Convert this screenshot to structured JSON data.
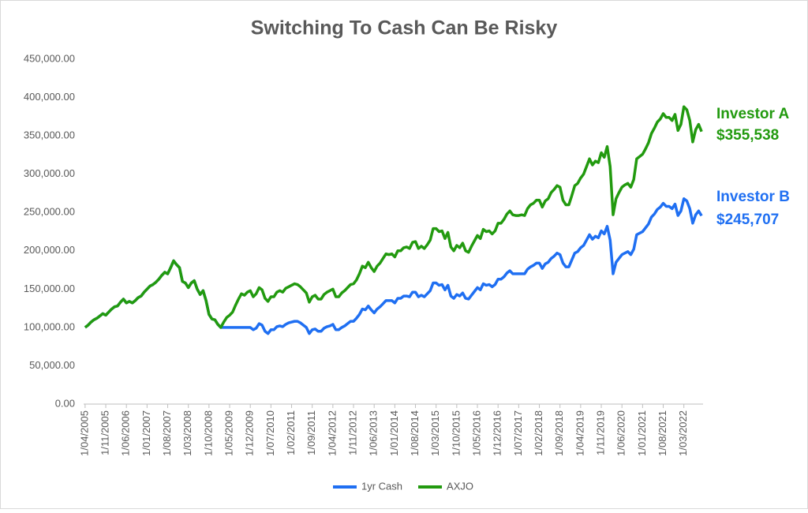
{
  "chart_data": {
    "type": "line",
    "title": "Switching To Cash Can Be Risky",
    "categories": [
      "1/04/2005",
      null,
      null,
      null,
      null,
      null,
      null,
      "1/11/2005",
      null,
      null,
      null,
      null,
      null,
      null,
      "1/06/2006",
      null,
      null,
      null,
      null,
      null,
      null,
      "1/01/2007",
      null,
      null,
      null,
      null,
      null,
      null,
      "1/08/2007",
      null,
      null,
      null,
      null,
      null,
      null,
      "1/03/2008",
      null,
      null,
      null,
      null,
      null,
      null,
      "1/10/2008",
      null,
      null,
      null,
      null,
      null,
      null,
      "1/05/2009",
      null,
      null,
      null,
      null,
      null,
      null,
      "1/12/2009",
      null,
      null,
      null,
      null,
      null,
      null,
      "1/07/2010",
      null,
      null,
      null,
      null,
      null,
      null,
      "1/02/2011",
      null,
      null,
      null,
      null,
      null,
      null,
      "1/09/2011",
      null,
      null,
      null,
      null,
      null,
      null,
      "1/04/2012",
      null,
      null,
      null,
      null,
      null,
      null,
      "1/11/2012",
      null,
      null,
      null,
      null,
      null,
      null,
      "1/06/2013",
      null,
      null,
      null,
      null,
      null,
      null,
      "1/01/2014",
      null,
      null,
      null,
      null,
      null,
      null,
      "1/08/2014",
      null,
      null,
      null,
      null,
      null,
      null,
      "1/03/2015",
      null,
      null,
      null,
      null,
      null,
      null,
      "1/10/2015",
      null,
      null,
      null,
      null,
      null,
      null,
      "1/05/2016",
      null,
      null,
      null,
      null,
      null,
      null,
      "1/12/2016",
      null,
      null,
      null,
      null,
      null,
      null,
      "1/07/2017",
      null,
      null,
      null,
      null,
      null,
      null,
      "1/02/2018",
      null,
      null,
      null,
      null,
      null,
      null,
      "1/09/2018",
      null,
      null,
      null,
      null,
      null,
      null,
      "1/04/2019",
      null,
      null,
      null,
      null,
      null,
      null,
      "1/11/2019",
      null,
      null,
      null,
      null,
      null,
      null,
      "1/06/2020",
      null,
      null,
      null,
      null,
      null,
      null,
      "1/01/2021",
      null,
      null,
      null,
      null,
      null,
      null,
      "1/08/2021",
      null,
      null,
      null,
      null,
      null,
      null,
      "1/03/2022",
      null,
      null,
      null,
      null,
      null,
      null
    ],
    "series": [
      {
        "name": "1yr Cash",
        "color": "#1f6ff2",
        "values": [
          100000,
          103000,
          107000,
          110000,
          112000,
          115000,
          118000,
          116000,
          120000,
          124000,
          127000,
          128000,
          133000,
          137000,
          132000,
          134000,
          132000,
          135000,
          139000,
          141000,
          146000,
          150000,
          154000,
          156000,
          159000,
          163000,
          168000,
          172000,
          170000,
          178000,
          187000,
          182000,
          178000,
          160000,
          158000,
          152000,
          158000,
          161000,
          150000,
          143000,
          148000,
          135000,
          117000,
          111000,
          110000,
          104000,
          100000,
          100000,
          100000,
          100000,
          100000,
          100000,
          100000,
          100000,
          100000,
          100000,
          100000,
          97000,
          99000,
          105000,
          103000,
          95000,
          92000,
          97000,
          97000,
          101000,
          102000,
          101000,
          104000,
          106000,
          107000,
          108000,
          108000,
          106000,
          103000,
          100000,
          92000,
          97000,
          98000,
          95000,
          95000,
          99000,
          101000,
          102000,
          104000,
          97000,
          97000,
          100000,
          102000,
          105000,
          108000,
          108000,
          112000,
          117000,
          124000,
          123000,
          128000,
          123000,
          119000,
          124000,
          127000,
          131000,
          135000,
          135000,
          135000,
          132000,
          138000,
          138000,
          141000,
          141000,
          140000,
          146000,
          146000,
          140000,
          142000,
          140000,
          144000,
          148000,
          158000,
          158000,
          155000,
          156000,
          149000,
          155000,
          141000,
          138000,
          143000,
          141000,
          145000,
          138000,
          137000,
          142000,
          147000,
          152000,
          149000,
          157000,
          155000,
          156000,
          153000,
          156000,
          163000,
          163000,
          166000,
          171000,
          174000,
          170000,
          170000,
          170000,
          170000,
          170000,
          176000,
          179000,
          181000,
          184000,
          184000,
          177000,
          183000,
          185000,
          190000,
          193000,
          197000,
          195000,
          184000,
          179000,
          179000,
          188000,
          197000,
          199000,
          204000,
          207000,
          214000,
          221000,
          215000,
          219000,
          217000,
          226000,
          222000,
          232000,
          214000,
          170000,
          185000,
          190000,
          195000,
          197000,
          199000,
          195000,
          202000,
          221000,
          223000,
          225000,
          230000,
          235000,
          244000,
          248000,
          254000,
          257000,
          262000,
          258000,
          258000,
          255000,
          261000,
          246000,
          252000,
          268000,
          265000,
          255000,
          236000,
          247000,
          252000,
          245707
        ]
      },
      {
        "name": "AXJO",
        "color": "#229a0f",
        "values": [
          100000,
          103000,
          107000,
          110000,
          112000,
          115000,
          118000,
          116000,
          120000,
          124000,
          127000,
          128000,
          133000,
          137000,
          132000,
          134000,
          132000,
          135000,
          139000,
          141000,
          146000,
          150000,
          154000,
          156000,
          159000,
          163000,
          168000,
          172000,
          170000,
          178000,
          187000,
          182000,
          178000,
          160000,
          158000,
          152000,
          158000,
          161000,
          150000,
          143000,
          148000,
          135000,
          117000,
          111000,
          110000,
          104000,
          100000,
          107000,
          113000,
          116000,
          120000,
          129000,
          137000,
          144000,
          142000,
          146000,
          148000,
          140000,
          144000,
          152000,
          149000,
          138000,
          134000,
          140000,
          140000,
          146000,
          148000,
          146000,
          151000,
          153000,
          155000,
          157000,
          156000,
          153000,
          149000,
          145000,
          133000,
          140000,
          142000,
          137000,
          137000,
          143000,
          146000,
          148000,
          150000,
          140000,
          140000,
          145000,
          148000,
          152000,
          156000,
          157000,
          162000,
          170000,
          180000,
          178000,
          185000,
          178000,
          173000,
          180000,
          184000,
          190000,
          196000,
          195000,
          196000,
          192000,
          200000,
          200000,
          204000,
          205000,
          203000,
          211000,
          212000,
          203000,
          206000,
          203000,
          208000,
          214000,
          229000,
          229000,
          225000,
          226000,
          216000,
          224000,
          205000,
          200000,
          207000,
          204000,
          210000,
          200000,
          198000,
          206000,
          213000,
          220000,
          216000,
          228000,
          225000,
          226000,
          222000,
          226000,
          236000,
          236000,
          241000,
          248000,
          252000,
          247000,
          246000,
          246000,
          247000,
          246000,
          255000,
          260000,
          262000,
          266000,
          266000,
          257000,
          265000,
          268000,
          276000,
          280000,
          285000,
          283000,
          266000,
          260000,
          260000,
          272000,
          285000,
          288000,
          295000,
          300000,
          310000,
          320000,
          312000,
          317000,
          315000,
          328000,
          322000,
          336000,
          310000,
          247000,
          268000,
          276000,
          283000,
          286000,
          288000,
          283000,
          293000,
          320000,
          323000,
          326000,
          333000,
          341000,
          353000,
          360000,
          368000,
          372000,
          379000,
          374000,
          374000,
          370000,
          378000,
          357000,
          365000,
          388000,
          384000,
          370000,
          342000,
          358000,
          365000,
          355538
        ]
      }
    ],
    "ylim": [
      0,
      450000
    ],
    "yticks": [
      {
        "value": 0,
        "label": "0.00"
      },
      {
        "value": 50000,
        "label": "50,000.00"
      },
      {
        "value": 100000,
        "label": "100,000.00"
      },
      {
        "value": 150000,
        "label": "150,000.00"
      },
      {
        "value": 200000,
        "label": "200,000.00"
      },
      {
        "value": 250000,
        "label": "250,000.00"
      },
      {
        "value": 300000,
        "label": "300,000.00"
      },
      {
        "value": 350000,
        "label": "350,000.00"
      },
      {
        "value": 400000,
        "label": "400,000.00"
      },
      {
        "value": 450000,
        "label": "450,000.00"
      }
    ],
    "grid": false,
    "legend": "bottom",
    "annotations": [
      {
        "name": "Investor A",
        "label": "$355,538",
        "color": "#229a0f"
      },
      {
        "name": "Investor B",
        "label": "$245,707",
        "color": "#1f6ff2"
      }
    ]
  }
}
